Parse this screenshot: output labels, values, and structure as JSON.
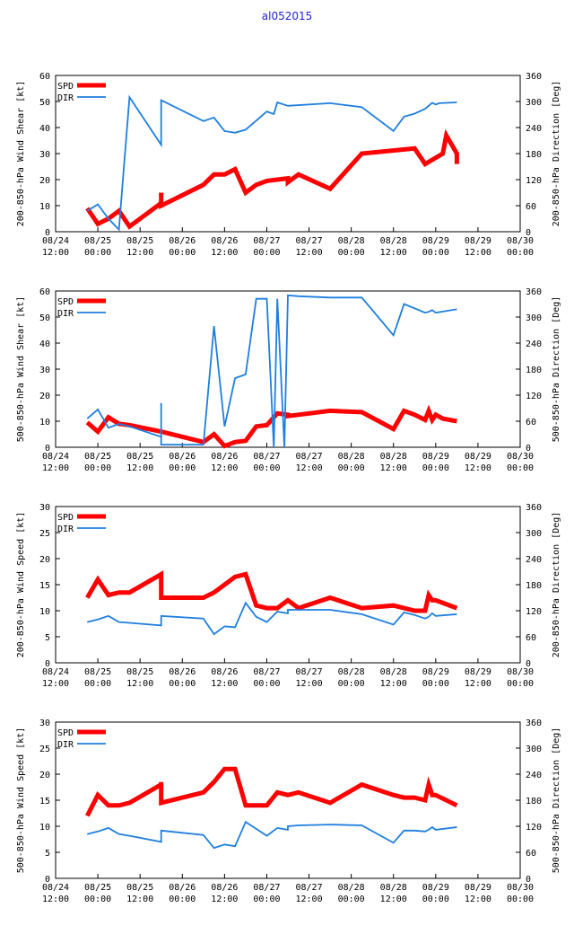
{
  "title": "al052015",
  "colors": {
    "speed": "#ff0000",
    "direction": "#1f7fe0",
    "axis": "#000000"
  },
  "x_ticks": [
    {
      "date": "08/24",
      "time": "12:00"
    },
    {
      "date": "08/25",
      "time": "00:00"
    },
    {
      "date": "08/25",
      "time": "12:00"
    },
    {
      "date": "08/26",
      "time": "00:00"
    },
    {
      "date": "08/26",
      "time": "12:00"
    },
    {
      "date": "08/27",
      "time": "00:00"
    },
    {
      "date": "08/27",
      "time": "12:00"
    },
    {
      "date": "08/28",
      "time": "00:00"
    },
    {
      "date": "08/28",
      "time": "12:00"
    },
    {
      "date": "08/29",
      "time": "00:00"
    },
    {
      "date": "08/29",
      "time": "12:00"
    },
    {
      "date": "08/30",
      "time": "00:00"
    }
  ],
  "chart_data": [
    {
      "type": "line",
      "title": "",
      "ylabel": "200-850-hPa Wind Shear [kt]",
      "y2label": "200-850-hPa Direction [Deg]",
      "xlabel": "",
      "xlim_hours_from_0824_1200": [
        0,
        132
      ],
      "ylim": [
        0,
        60
      ],
      "y_ticks": [
        "0",
        "10",
        "20",
        "30",
        "40",
        "50",
        "60"
      ],
      "y2lim": [
        0,
        360
      ],
      "y2_ticks": [
        "0",
        "60",
        "120",
        "180",
        "240",
        "300",
        "360"
      ],
      "legend": {
        "position": "top-left",
        "entries": [
          "SPD",
          "DIR"
        ]
      },
      "series": [
        {
          "name": "SPD",
          "axis": "left",
          "x": [
            9,
            12,
            15,
            18,
            21,
            30,
            30,
            30,
            42,
            45,
            48,
            51,
            54,
            57,
            60,
            63,
            66,
            66,
            69,
            78,
            87,
            102,
            105,
            110,
            111,
            114,
            114
          ],
          "y": [
            9,
            3,
            5,
            8,
            2,
            11,
            15,
            10,
            18,
            22,
            22,
            24,
            15,
            18,
            19.5,
            20,
            20.5,
            19,
            22,
            16.5,
            30,
            32,
            26,
            30,
            37,
            30,
            26
          ]
        },
        {
          "name": "DIR",
          "axis": "right",
          "x": [
            9,
            12,
            15,
            18,
            21,
            30,
            30,
            42,
            45,
            48,
            51,
            54,
            57,
            60,
            62,
            63,
            66,
            78,
            87,
            96,
            99,
            102,
            105,
            107,
            108,
            109,
            114
          ],
          "y": [
            48,
            63,
            30,
            5,
            310,
            200,
            303,
            255,
            263,
            232,
            228,
            235,
            256,
            277,
            271,
            298,
            290,
            296,
            287,
            232,
            265,
            272,
            283,
            297,
            293,
            296,
            298
          ]
        }
      ]
    },
    {
      "type": "line",
      "title": "",
      "ylabel": "500-850-hPa Wind Shear [kt]",
      "y2label": "500-850-hPa Direction [Deg]",
      "xlabel": "",
      "xlim_hours_from_0824_1200": [
        0,
        132
      ],
      "ylim": [
        0,
        60
      ],
      "y_ticks": [
        "0",
        "10",
        "20",
        "30",
        "40",
        "50",
        "60"
      ],
      "y2lim": [
        0,
        360
      ],
      "y2_ticks": [
        "0",
        "60",
        "120",
        "180",
        "240",
        "300",
        "360"
      ],
      "legend": {
        "position": "top-left",
        "entries": [
          "SPD",
          "DIR"
        ]
      },
      "series": [
        {
          "name": "SPD",
          "axis": "left",
          "x": [
            9,
            12,
            15,
            18,
            21,
            30,
            42,
            45,
            48,
            51,
            54,
            57,
            60,
            63,
            66,
            66,
            69,
            78,
            87,
            96,
            99,
            102,
            105,
            106,
            107,
            108,
            110,
            114
          ],
          "y": [
            9.5,
            6,
            11.5,
            9,
            8.5,
            6,
            2,
            5,
            0.5,
            2,
            2.5,
            8,
            8.5,
            13,
            12.5,
            12,
            12.5,
            14,
            13.5,
            7,
            14,
            12.5,
            10.5,
            14,
            10.5,
            12.5,
            11,
            10
          ]
        },
        {
          "name": "DIR",
          "axis": "right",
          "x": [
            9,
            12,
            15,
            18,
            21,
            30,
            30,
            30,
            42,
            45,
            48,
            51,
            54,
            57,
            60,
            62,
            63,
            65,
            66,
            69,
            78,
            87,
            96,
            99,
            102,
            105,
            106,
            107,
            108,
            114
          ],
          "y": [
            66,
            87,
            45,
            54,
            48,
            24,
            102,
            6,
            6,
            279,
            48,
            159,
            168,
            342,
            342,
            0,
            342,
            0,
            350,
            348,
            345,
            345,
            258,
            330,
            320,
            310,
            312,
            316,
            310,
            318
          ]
        }
      ]
    },
    {
      "type": "line",
      "title": "",
      "ylabel": "200-850-hPa Wind Speed [kt]",
      "y2label": "200-850-hPa Direction [Deg]",
      "xlabel": "",
      "xlim_hours_from_0824_1200": [
        0,
        132
      ],
      "ylim": [
        0,
        30
      ],
      "y_ticks": [
        "0",
        "5",
        "10",
        "15",
        "20",
        "25",
        "30"
      ],
      "y2lim": [
        0,
        360
      ],
      "y2_ticks": [
        "0",
        "60",
        "120",
        "180",
        "240",
        "300",
        "360"
      ],
      "legend": {
        "position": "top-left",
        "entries": [
          "SPD",
          "DIR"
        ]
      },
      "series": [
        {
          "name": "SPD",
          "axis": "left",
          "x": [
            9,
            12,
            15,
            18,
            21,
            30,
            30,
            30,
            42,
            45,
            48,
            51,
            54,
            57,
            60,
            63,
            66,
            69,
            78,
            87,
            96,
            99,
            102,
            105,
            106,
            107,
            108,
            114
          ],
          "y": [
            12.5,
            16,
            13,
            13.5,
            13.5,
            17,
            15,
            12.5,
            12.5,
            13.5,
            15,
            16.5,
            17,
            11,
            10.5,
            10.5,
            12,
            10.5,
            12.5,
            10.5,
            11,
            10.5,
            10,
            10,
            13,
            12,
            12,
            10.5
          ]
        },
        {
          "name": "DIR",
          "axis": "right",
          "x": [
            9,
            12,
            15,
            18,
            21,
            30,
            30,
            42,
            45,
            48,
            51,
            54,
            57,
            60,
            63,
            66,
            66,
            69,
            78,
            87,
            96,
            99,
            102,
            105,
            106,
            107,
            108,
            114
          ],
          "y": [
            94,
            100,
            108,
            94,
            92,
            86,
            108,
            102,
            66,
            84,
            82,
            138,
            106,
            94,
            118,
            114,
            122,
            122,
            122,
            112,
            88,
            116,
            110,
            102,
            106,
            114,
            108,
            112
          ]
        }
      ]
    },
    {
      "type": "line",
      "title": "",
      "ylabel": "500-850-hPa Wind Speed [kt]",
      "y2label": "500-850-hPa Direction [Deg]",
      "xlabel": "",
      "xlim_hours_from_0824_1200": [
        0,
        132
      ],
      "ylim": [
        0,
        30
      ],
      "y_ticks": [
        "0",
        "5",
        "10",
        "15",
        "20",
        "25",
        "30"
      ],
      "y2lim": [
        0,
        360
      ],
      "y2_ticks": [
        "0",
        "60",
        "120",
        "180",
        "240",
        "300",
        "360"
      ],
      "legend": {
        "position": "top-left",
        "entries": [
          "SPD",
          "DIR"
        ]
      },
      "series": [
        {
          "name": "SPD",
          "axis": "left",
          "x": [
            9,
            12,
            15,
            18,
            21,
            30,
            30,
            30,
            42,
            45,
            48,
            51,
            54,
            57,
            60,
            63,
            66,
            69,
            78,
            87,
            96,
            99,
            102,
            105,
            106,
            107,
            108,
            114
          ],
          "y": [
            12,
            16,
            14,
            14,
            14.5,
            18,
            18.5,
            14.5,
            16.5,
            18.5,
            21,
            21,
            14,
            14,
            14,
            16.5,
            16,
            16.5,
            14.5,
            18,
            16,
            15.5,
            15.5,
            15,
            18,
            16,
            16,
            14
          ]
        },
        {
          "name": "DIR",
          "axis": "right",
          "x": [
            9,
            12,
            15,
            18,
            21,
            30,
            30,
            42,
            45,
            48,
            51,
            54,
            57,
            60,
            63,
            66,
            66,
            69,
            78,
            87,
            96,
            99,
            102,
            105,
            106,
            107,
            108,
            114
          ],
          "y": [
            102,
            108,
            116,
            102,
            98,
            84,
            110,
            100,
            70,
            78,
            74,
            130,
            114,
            98,
            116,
            112,
            120,
            122,
            124,
            122,
            82,
            110,
            110,
            108,
            112,
            118,
            112,
            118
          ]
        }
      ]
    }
  ]
}
